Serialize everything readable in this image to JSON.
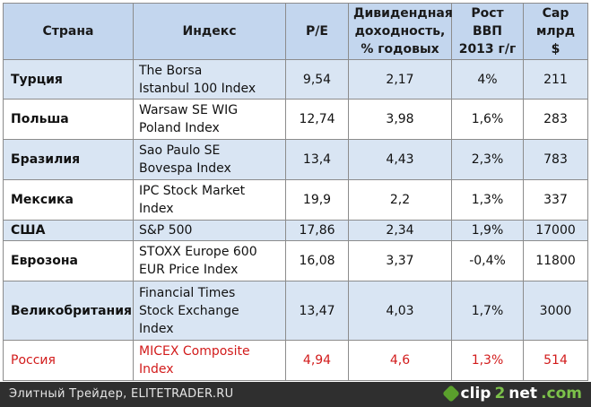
{
  "table": {
    "headers": {
      "country": "Страна",
      "index": "Индекс",
      "pe": "P/E",
      "dividend": [
        "Дивидендная",
        "доходность,",
        "% годовых"
      ],
      "gdp": [
        "Рост",
        "ВВП",
        "2013 г/г"
      ],
      "cap": [
        "Cap",
        "млрд",
        "$"
      ]
    },
    "rows": [
      {
        "country": "Турция",
        "index": [
          "The Borsa",
          "Istanbul 100 Index"
        ],
        "pe": "9,54",
        "dividend": "2,17",
        "gdp": "4%",
        "cap": "211"
      },
      {
        "country": "Польша",
        "index": [
          "Warsaw SE WIG",
          "Poland Index"
        ],
        "pe": "12,74",
        "dividend": "3,98",
        "gdp": "1,6%",
        "cap": "283"
      },
      {
        "country": "Бразилия",
        "index": [
          "Sao Paulo SE",
          "Bovespa Index"
        ],
        "pe": "13,4",
        "dividend": "4,43",
        "gdp": "2,3%",
        "cap": "783"
      },
      {
        "country": "Мексика",
        "index": [
          "IPC Stock Market",
          "Index"
        ],
        "pe": "19,9",
        "dividend": "2,2",
        "gdp": "1,3%",
        "cap": "337"
      },
      {
        "country": "США",
        "index": [
          "S&P 500"
        ],
        "pe": "17,86",
        "dividend": "2,34",
        "gdp": "1,9%",
        "cap": "17000"
      },
      {
        "country": "Еврозона",
        "index": [
          "STOXX Europe 600",
          "EUR Price Index"
        ],
        "pe": "16,08",
        "dividend": "3,37",
        "gdp": "-0,4%",
        "cap": "11800"
      },
      {
        "country": "Великобритания",
        "index": [
          "Financial Times",
          "Stock Exchange",
          "Index"
        ],
        "pe": "13,47",
        "dividend": "4,03",
        "gdp": "1,7%",
        "cap": "3000"
      },
      {
        "country": "Россия",
        "index": [
          "MICEX Composite",
          "Index"
        ],
        "pe": "4,94",
        "dividend": "4,6",
        "gdp": "1,3%",
        "cap": "514"
      }
    ]
  },
  "footer": {
    "credit": "Элитный Трейдер, ELITETRADER.RU",
    "logo": {
      "part1": "clip",
      "part2": "2",
      "part3": "net",
      "part4": ".com"
    }
  },
  "colors": {
    "header_bg": "#c3d6ee",
    "stripe_bg": "#d9e5f3",
    "highlight_text": "#d21b1b",
    "footer_bg": "#2f2f2f"
  }
}
